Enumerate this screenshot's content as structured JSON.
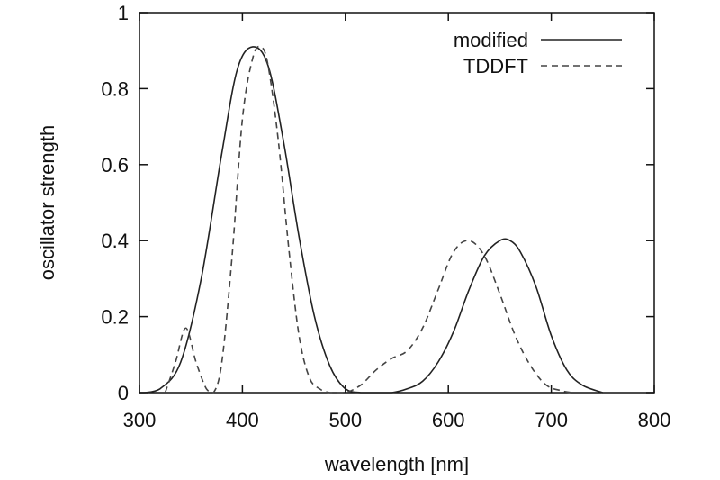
{
  "chart_data": {
    "type": "line",
    "title": "",
    "xlabel": "wavelength [nm]",
    "ylabel": "oscillator strength",
    "xlim": [
      300,
      800
    ],
    "ylim": [
      0,
      1
    ],
    "xticks": [
      300,
      400,
      500,
      600,
      700,
      800
    ],
    "yticks": [
      0,
      0.2,
      0.4,
      0.6,
      0.8,
      1
    ],
    "xtick_labels": [
      "300",
      "400",
      "500",
      "600",
      "700",
      "800"
    ],
    "ytick_labels": [
      "0",
      "0.2",
      "0.4",
      "0.6",
      "0.8",
      "1"
    ],
    "grid": false,
    "legend_position": "top-right",
    "series": [
      {
        "name": "modified",
        "style": "solid",
        "color": "#222222",
        "x": [
          305,
          320,
          340,
          360,
          380,
          395,
          410,
          425,
          440,
          455,
          470,
          485,
          500,
          515,
          530,
          545,
          560,
          575,
          590,
          605,
          620,
          635,
          650,
          660,
          670,
          685,
          700,
          715,
          730,
          750
        ],
        "y": [
          0.0,
          0.01,
          0.08,
          0.3,
          0.63,
          0.85,
          0.91,
          0.86,
          0.66,
          0.41,
          0.2,
          0.07,
          0.01,
          0.0,
          0.0,
          0.0,
          0.01,
          0.03,
          0.08,
          0.16,
          0.27,
          0.36,
          0.4,
          0.4,
          0.37,
          0.28,
          0.15,
          0.06,
          0.02,
          0.0
        ]
      },
      {
        "name": "TDDFT",
        "style": "dashed",
        "color": "#444444",
        "x": [
          325,
          335,
          345,
          355,
          365,
          372,
          380,
          390,
          400,
          410,
          418,
          425,
          435,
          445,
          455,
          465,
          475,
          485,
          500,
          515,
          530,
          545,
          560,
          575,
          590,
          605,
          620,
          635,
          650,
          665,
          680,
          695,
          710,
          720
        ],
        "y": [
          0.0,
          0.08,
          0.17,
          0.08,
          0.01,
          0.0,
          0.08,
          0.36,
          0.72,
          0.88,
          0.91,
          0.86,
          0.66,
          0.38,
          0.15,
          0.04,
          0.01,
          0.0,
          0.0,
          0.02,
          0.06,
          0.09,
          0.11,
          0.17,
          0.27,
          0.37,
          0.4,
          0.36,
          0.26,
          0.15,
          0.07,
          0.02,
          0.005,
          0.0
        ]
      }
    ]
  }
}
